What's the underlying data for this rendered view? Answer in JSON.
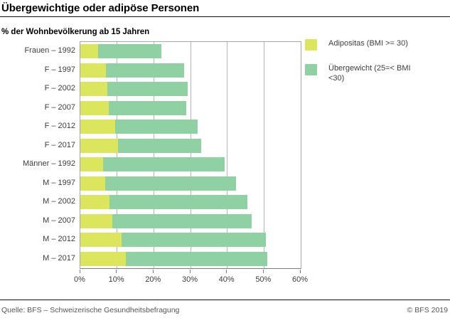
{
  "header": {
    "title": "Übergewichtige oder adipöse Personen",
    "subtitle": "% der Wohnbevölkerung ab 15 Jahren"
  },
  "chart_data": {
    "type": "bar",
    "orientation": "horizontal",
    "stacked": true,
    "title": "Übergewichtige oder adipöse Personen",
    "subtitle": "% der Wohnbevölkerung ab 15 Jahren",
    "unit": "% der Wohnbevölkerung ab 15 Jahren",
    "categories": [
      "Frauen – 1992",
      "F – 1997",
      "F – 2002",
      "F – 2007",
      "F – 2012",
      "F – 2017",
      "Männer – 1992",
      "M – 1997",
      "M – 2002",
      "M – 2007",
      "M – 2012",
      "M – 2017"
    ],
    "series": [
      {
        "name": "Adipositas (BMI >= 30)",
        "color": "#dbe65c",
        "values": [
          4.8,
          7.0,
          7.4,
          7.8,
          9.4,
          10.2,
          6.1,
          6.7,
          8.0,
          8.7,
          11.2,
          12.4
        ]
      },
      {
        "name": "Übergewicht (25=< BMI <30)",
        "color": "#90d1a4",
        "values": [
          17.2,
          21.2,
          21.8,
          21.0,
          22.6,
          22.8,
          33.2,
          35.6,
          37.5,
          38.0,
          39.4,
          38.6
        ]
      }
    ],
    "xlim": [
      0,
      60
    ],
    "x_tick_values": [
      0,
      10,
      20,
      30,
      40,
      50,
      60
    ],
    "x_tick_labels": [
      "0%",
      "10%",
      "20%",
      "30%",
      "40%",
      "50%",
      "60%"
    ],
    "grid": "vertical",
    "legend_position": "top-right"
  },
  "footer": {
    "source": "Quelle: BFS – Schweizerische Gesundheitsbefragung",
    "copyright": "© BFS 2019"
  }
}
